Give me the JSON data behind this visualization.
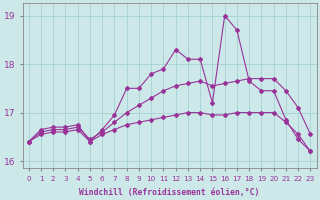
{
  "xlabel": "Windchill (Refroidissement éolien,°C)",
  "background_color": "#cce8e8",
  "grid_color": "#aad4d4",
  "line_color": "#993399",
  "hours": [
    0,
    1,
    2,
    3,
    4,
    5,
    6,
    7,
    8,
    9,
    10,
    11,
    12,
    13,
    14,
    15,
    16,
    17,
    18,
    19,
    20,
    21,
    22,
    23
  ],
  "temp": [
    16.4,
    16.65,
    16.7,
    16.7,
    16.75,
    16.4,
    16.65,
    16.95,
    17.5,
    17.5,
    17.8,
    17.9,
    18.3,
    18.1,
    18.1,
    17.2,
    19.0,
    18.7,
    17.65,
    17.45,
    17.45,
    16.85,
    16.45,
    16.2
  ],
  "wind_high": [
    16.4,
    16.6,
    16.65,
    16.65,
    16.7,
    16.45,
    16.6,
    16.8,
    17.0,
    17.15,
    17.3,
    17.45,
    17.55,
    17.6,
    17.65,
    17.55,
    17.6,
    17.65,
    17.7,
    17.7,
    17.7,
    17.45,
    17.1,
    16.55
  ],
  "wind_low": [
    16.4,
    16.55,
    16.6,
    16.6,
    16.65,
    16.4,
    16.55,
    16.65,
    16.75,
    16.8,
    16.85,
    16.9,
    16.95,
    17.0,
    17.0,
    16.95,
    16.95,
    17.0,
    17.0,
    17.0,
    17.0,
    16.8,
    16.55,
    16.2
  ],
  "ylim": [
    15.85,
    19.25
  ],
  "yticks": [
    16,
    17,
    18,
    19
  ],
  "xtick_labels": [
    "0",
    "1",
    "2",
    "3",
    "4",
    "5",
    "6",
    "7",
    "8",
    "9",
    "10",
    "11",
    "12",
    "13",
    "14",
    "15",
    "16",
    "17",
    "18",
    "19",
    "20",
    "21",
    "22",
    "23"
  ]
}
